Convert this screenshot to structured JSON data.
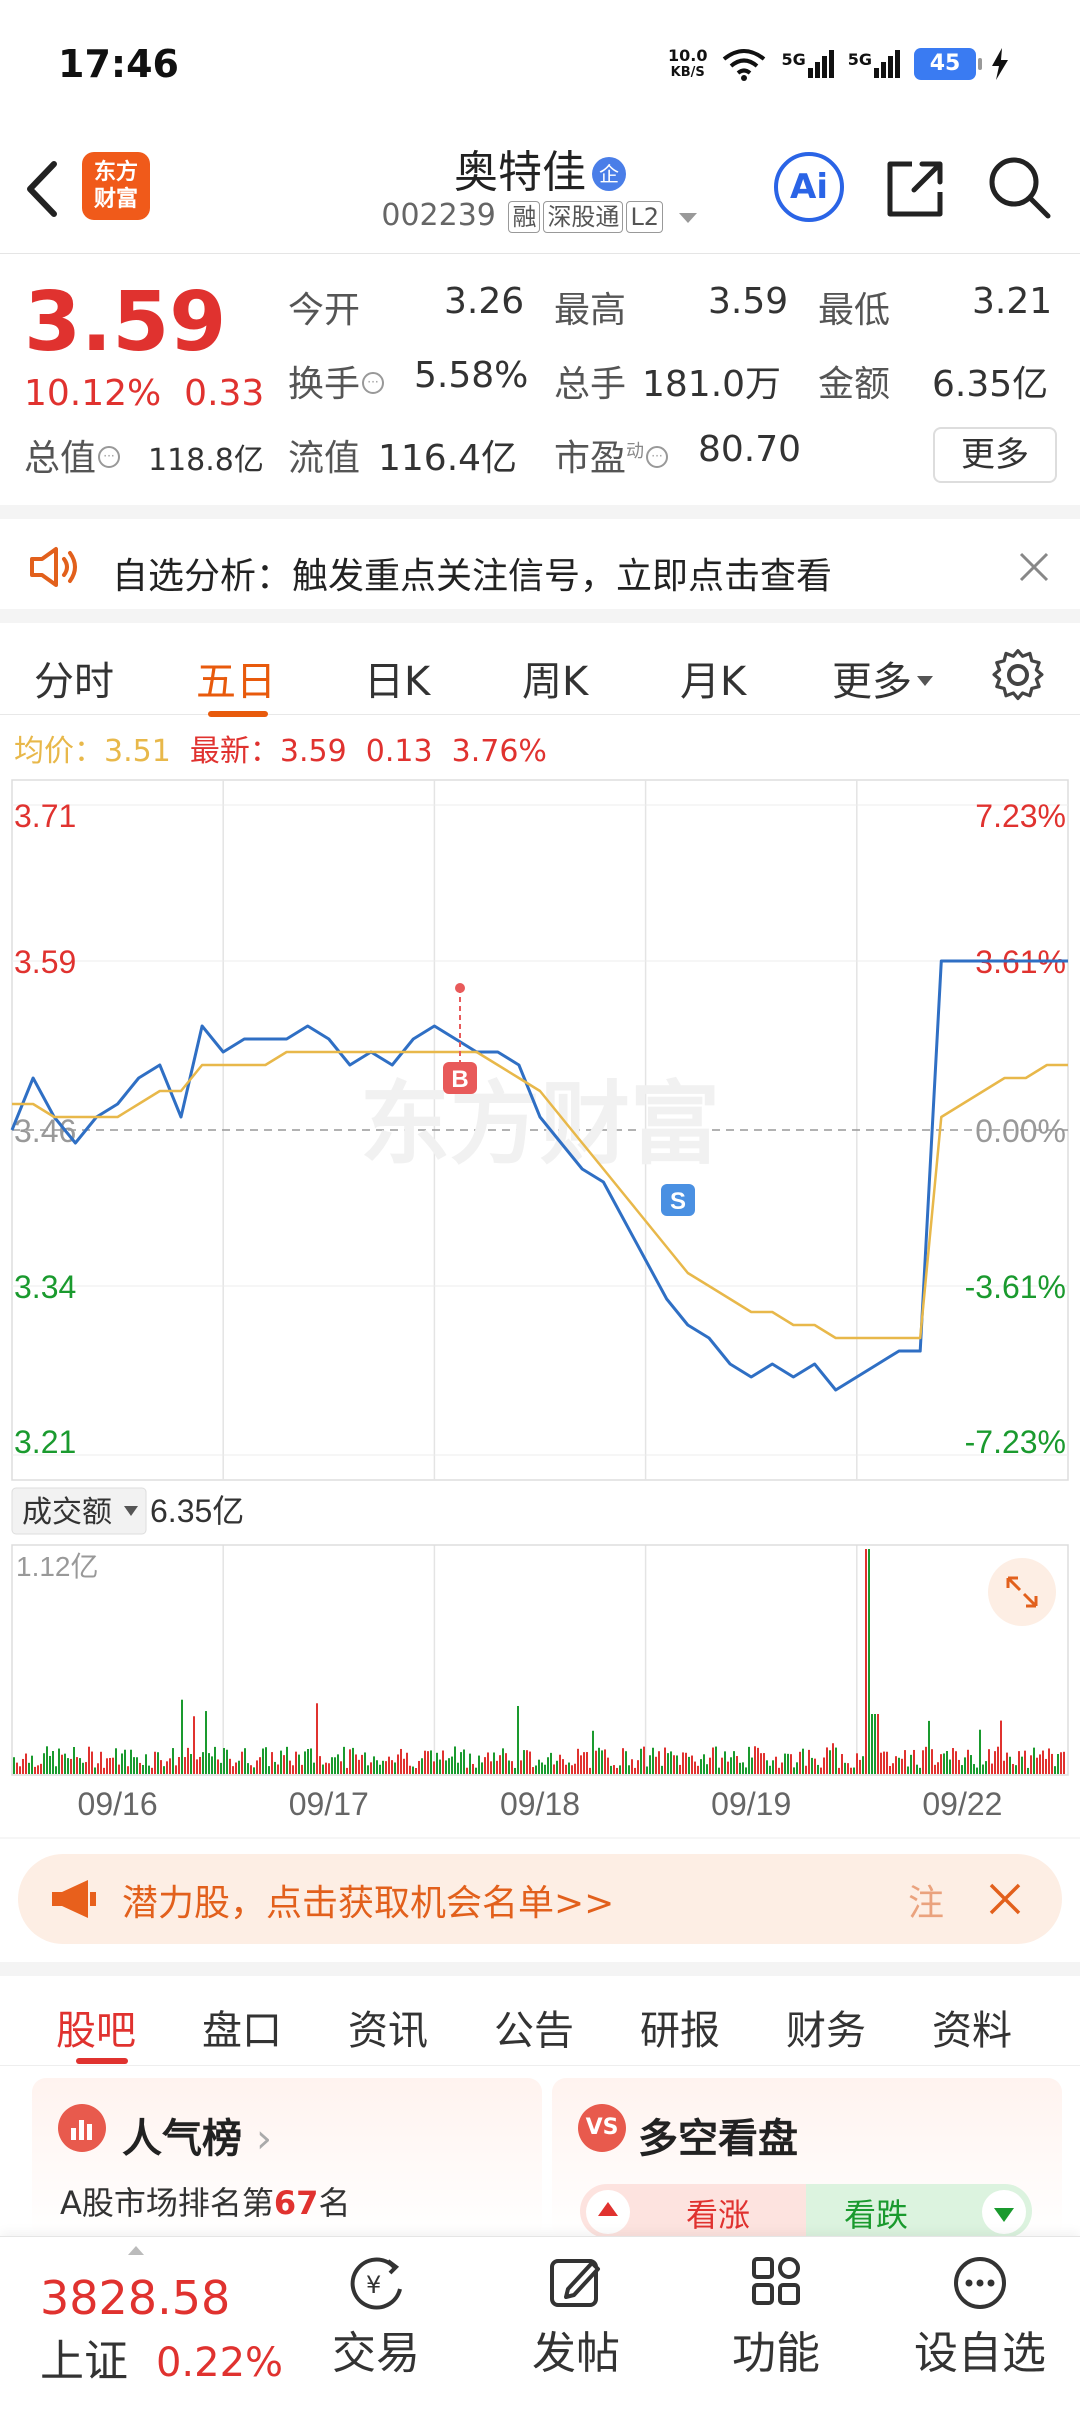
{
  "status_bar": {
    "time": "17:46",
    "net_speed_value": "10.0",
    "net_speed_unit": "KB/S",
    "signal1": "5G",
    "signal2": "5G",
    "battery": "45"
  },
  "header": {
    "logo_line1": "东方",
    "logo_line2": "财富",
    "stock_name": "奥特佳",
    "enterprise_badge": "企",
    "stock_code": "002239",
    "tags": [
      "融",
      "深股通",
      "L2"
    ],
    "ai_label": "Ai"
  },
  "quote": {
    "price": "3.59",
    "change_pct": "10.12%",
    "change_amt": "0.33",
    "open_label": "今开",
    "open": "3.26",
    "high_label": "最高",
    "high": "3.59",
    "low_label": "最低",
    "low": "3.21",
    "turnover_label": "换手",
    "turnover": "5.58%",
    "volume_label": "总手",
    "volume": "181.0万",
    "amount_label": "金额",
    "amount": "6.35亿",
    "mktcap_label": "总值",
    "mktcap": "118.8亿",
    "float_label": "流值",
    "float_cap": "116.4亿",
    "pe_label": "市盈",
    "pe_sup": "动",
    "pe": "80.70",
    "more_label": "更多"
  },
  "notice": {
    "text": "自选分析：触发重点关注信号，立即点击查看"
  },
  "chart_tabs": {
    "items": [
      "分时",
      "五日",
      "日K",
      "周K",
      "月K",
      "更多"
    ],
    "active": "五日"
  },
  "info_line": {
    "avg_label": "均价：",
    "avg": "3.51",
    "latest_label": "最新：",
    "latest": "3.59",
    "latest_chg": "0.13",
    "latest_pct": "3.76%"
  },
  "chart_data": {
    "type": "line",
    "ylim": [
      3.21,
      3.71
    ],
    "y_ticks_left": [
      "3.71",
      "3.59",
      "3.46",
      "3.34",
      "3.21"
    ],
    "y_ticks_right": [
      "7.23%",
      "3.61%",
      "0.00%",
      "-3.61%",
      "-7.23%"
    ],
    "x_ticks": [
      "09/16",
      "09/17",
      "09/18",
      "09/19",
      "09/22"
    ],
    "markers": [
      {
        "label": "B",
        "price": 3.54
      },
      {
        "label": "S",
        "price": 3.4
      }
    ],
    "series": [
      {
        "name": "价格",
        "color": "#2f6fc4",
        "values": [
          3.46,
          3.5,
          3.47,
          3.45,
          3.47,
          3.48,
          3.5,
          3.51,
          3.47,
          3.54,
          3.52,
          3.53,
          3.53,
          3.53,
          3.54,
          3.53,
          3.51,
          3.52,
          3.51,
          3.53,
          3.54,
          3.53,
          3.52,
          3.52,
          3.51,
          3.47,
          3.45,
          3.43,
          3.42,
          3.39,
          3.36,
          3.33,
          3.31,
          3.3,
          3.28,
          3.27,
          3.28,
          3.27,
          3.28,
          3.26,
          3.27,
          3.28,
          3.29,
          3.29,
          3.59,
          3.59,
          3.59,
          3.59,
          3.59,
          3.59,
          3.59
        ]
      },
      {
        "name": "均价",
        "color": "#e8b84a",
        "values": [
          3.48,
          3.48,
          3.47,
          3.47,
          3.47,
          3.47,
          3.48,
          3.49,
          3.49,
          3.51,
          3.51,
          3.51,
          3.51,
          3.52,
          3.52,
          3.52,
          3.52,
          3.52,
          3.52,
          3.52,
          3.52,
          3.52,
          3.52,
          3.51,
          3.5,
          3.49,
          3.47,
          3.45,
          3.43,
          3.41,
          3.39,
          3.37,
          3.35,
          3.34,
          3.33,
          3.32,
          3.32,
          3.31,
          3.31,
          3.3,
          3.3,
          3.3,
          3.3,
          3.3,
          3.47,
          3.48,
          3.49,
          3.5,
          3.5,
          3.51,
          3.51
        ]
      }
    ],
    "volume_label": "成交额",
    "volume_total": "6.35亿",
    "volume_max": "1.12亿"
  },
  "promo": {
    "text": "潜力股，点击获取机会名单>>",
    "text2": "注"
  },
  "bottom_tabs": {
    "items": [
      "股吧",
      "盘口",
      "资讯",
      "公告",
      "研报",
      "财务",
      "资料"
    ],
    "active": "股吧"
  },
  "cards": {
    "popularity_title": "人气榜",
    "popularity_icon": "",
    "popularity_rank_prefix": "A股市场排名第",
    "popularity_rank": "67",
    "popularity_rank_suffix": "名",
    "bullbear_title": "多空看盘",
    "bullbear_icon": "VS",
    "bull_label": "看涨",
    "bear_label": "看跌"
  },
  "bottom_nav": {
    "index_value": "3828.58",
    "index_name": "上证",
    "index_pct": "0.22%",
    "items": [
      "交易",
      "发帖",
      "功能",
      "设自选"
    ]
  }
}
